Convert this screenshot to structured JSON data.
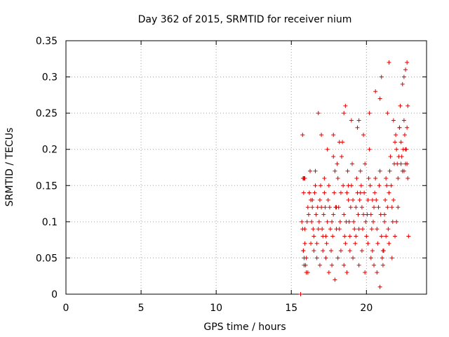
{
  "chart_data": {
    "type": "scatter",
    "title": "Day 362 of 2015, SRMTID for receiver nium",
    "xlabel": "GPS time / hours",
    "ylabel": "SRMTID / TECUs",
    "xlim": [
      0,
      24
    ],
    "ylim": [
      0,
      0.35
    ],
    "xticks": [
      0,
      5,
      10,
      15,
      20
    ],
    "xtick_labels": [
      "0",
      "5",
      "10",
      "15",
      "20"
    ],
    "yticks": [
      0,
      0.05,
      0.1,
      0.15,
      0.2,
      0.25,
      0.3,
      0.35
    ],
    "ytick_labels": [
      "0",
      "0.05",
      "0.1",
      "0.15",
      "0.2",
      "0.25",
      "0.3",
      "0.35"
    ],
    "grid": true,
    "marker": "+",
    "color": "#e00000",
    "series": [
      {
        "name": "SRMTID",
        "x": [
          15.62,
          15.7,
          15.75,
          15.8,
          15.85,
          15.9,
          15.95,
          16.0,
          16.05,
          16.1,
          16.15,
          16.2,
          16.25,
          16.3,
          16.35,
          16.4,
          16.45,
          16.5,
          16.55,
          16.6,
          16.65,
          16.7,
          16.75,
          16.8,
          16.85,
          16.9,
          16.95,
          17.0,
          17.05,
          17.1,
          17.15,
          17.2,
          17.25,
          17.3,
          17.35,
          17.4,
          17.45,
          17.5,
          17.55,
          17.6,
          17.65,
          17.7,
          17.75,
          17.8,
          17.85,
          17.9,
          17.95,
          18.0,
          18.05,
          18.1,
          18.15,
          18.2,
          18.25,
          18.3,
          18.35,
          18.4,
          18.45,
          18.5,
          18.55,
          18.6,
          18.65,
          18.7,
          18.75,
          18.8,
          18.85,
          18.9,
          18.95,
          19.0,
          19.05,
          19.1,
          19.15,
          19.2,
          19.25,
          19.3,
          19.35,
          19.4,
          19.45,
          19.5,
          19.55,
          19.6,
          19.65,
          19.7,
          19.75,
          19.8,
          19.85,
          19.9,
          19.95,
          20.0,
          20.05,
          20.1,
          20.15,
          20.2,
          20.25,
          20.3,
          20.35,
          20.4,
          20.45,
          20.5,
          20.55,
          20.6,
          20.65,
          20.7,
          20.75,
          20.8,
          20.85,
          20.9,
          20.95,
          21.0,
          21.05,
          21.1,
          21.15,
          21.2,
          21.25,
          21.3,
          21.35,
          21.4,
          21.45,
          21.5,
          21.55,
          21.6,
          21.65,
          21.7,
          21.75,
          21.8,
          21.85,
          21.9,
          21.95,
          22.0,
          22.05,
          22.1,
          22.15,
          22.2,
          22.25,
          22.3,
          22.35,
          22.4,
          22.45,
          22.5,
          22.55,
          22.6,
          22.65,
          22.7,
          22.75,
          22.8,
          15.8,
          15.85,
          15.9,
          16.0,
          16.1,
          16.3,
          16.5,
          16.7,
          16.9,
          17.1,
          17.3,
          17.5,
          17.7,
          17.9,
          18.1,
          18.3,
          18.5,
          18.7,
          18.9,
          19.1,
          19.3,
          19.5,
          19.7,
          19.9,
          20.1,
          20.3,
          20.5,
          20.7,
          20.9,
          21.1,
          21.3,
          21.5,
          21.7,
          21.9,
          22.1,
          22.3,
          22.5,
          22.7,
          15.9,
          16.2,
          16.6,
          17.0,
          17.4,
          17.8,
          18.2,
          18.6,
          19.0,
          19.4,
          19.8,
          20.2,
          20.6,
          21.0,
          21.4,
          21.8,
          22.2,
          22.6,
          15.75,
          15.78,
          15.8,
          15.82,
          15.85,
          16.4,
          17.2,
          18.0,
          18.8,
          19.6,
          20.4,
          21.2,
          22.0,
          22.4,
          22.5,
          22.6,
          22.7,
          22.75,
          21.5,
          20.9,
          19.5,
          18.5,
          17.8,
          16.8
        ],
        "y": [
          0.0,
          0.1,
          0.09,
          0.06,
          0.05,
          0.07,
          0.04,
          0.03,
          0.1,
          0.12,
          0.11,
          0.14,
          0.17,
          0.13,
          0.1,
          0.12,
          0.09,
          0.08,
          0.14,
          0.15,
          0.11,
          0.07,
          0.12,
          0.09,
          0.1,
          0.13,
          0.15,
          0.12,
          0.09,
          0.08,
          0.11,
          0.16,
          0.12,
          0.08,
          0.07,
          0.1,
          0.13,
          0.15,
          0.12,
          0.09,
          0.06,
          0.1,
          0.08,
          0.11,
          0.14,
          0.17,
          0.12,
          0.09,
          0.18,
          0.16,
          0.12,
          0.09,
          0.1,
          0.14,
          0.19,
          0.21,
          0.15,
          0.11,
          0.08,
          0.07,
          0.1,
          0.14,
          0.17,
          0.13,
          0.1,
          0.08,
          0.12,
          0.15,
          0.18,
          0.13,
          0.1,
          0.09,
          0.07,
          0.12,
          0.16,
          0.14,
          0.11,
          0.09,
          0.13,
          0.17,
          0.15,
          0.12,
          0.09,
          0.11,
          0.14,
          0.18,
          0.1,
          0.08,
          0.11,
          0.13,
          0.16,
          0.2,
          0.15,
          0.11,
          0.09,
          0.06,
          0.1,
          0.12,
          0.14,
          0.16,
          0.13,
          0.09,
          0.07,
          0.12,
          0.15,
          0.17,
          0.11,
          0.08,
          0.05,
          0.04,
          0.06,
          0.1,
          0.13,
          0.16,
          0.15,
          0.12,
          0.09,
          0.14,
          0.17,
          0.19,
          0.15,
          0.12,
          0.1,
          0.13,
          0.18,
          0.21,
          0.22,
          0.2,
          0.18,
          0.16,
          0.19,
          0.23,
          0.26,
          0.21,
          0.19,
          0.17,
          0.2,
          0.24,
          0.22,
          0.18,
          0.2,
          0.23,
          0.16,
          0.08,
          0.06,
          0.04,
          0.09,
          0.05,
          0.03,
          0.07,
          0.06,
          0.05,
          0.04,
          0.06,
          0.05,
          0.03,
          0.04,
          0.02,
          0.05,
          0.06,
          0.04,
          0.03,
          0.06,
          0.05,
          0.08,
          0.04,
          0.06,
          0.03,
          0.07,
          0.05,
          0.04,
          0.03,
          0.01,
          0.06,
          0.08,
          0.07,
          0.05,
          0.08,
          0.12,
          0.18,
          0.17,
          0.18,
          0.16,
          0.14,
          0.17,
          0.22,
          0.2,
          0.19,
          0.21,
          0.26,
          0.24,
          0.23,
          0.22,
          0.25,
          0.28,
          0.3,
          0.25,
          0.24,
          0.23,
          0.2,
          0.22,
          0.16,
          0.16,
          0.14,
          0.16,
          0.13,
          0.14,
          0.12,
          0.15,
          0.14,
          0.13,
          0.11,
          0.1,
          0.29,
          0.3,
          0.31,
          0.32,
          0.26,
          0.32,
          0.27,
          0.24,
          0.25,
          0.22,
          0.25
        ]
      }
    ]
  }
}
